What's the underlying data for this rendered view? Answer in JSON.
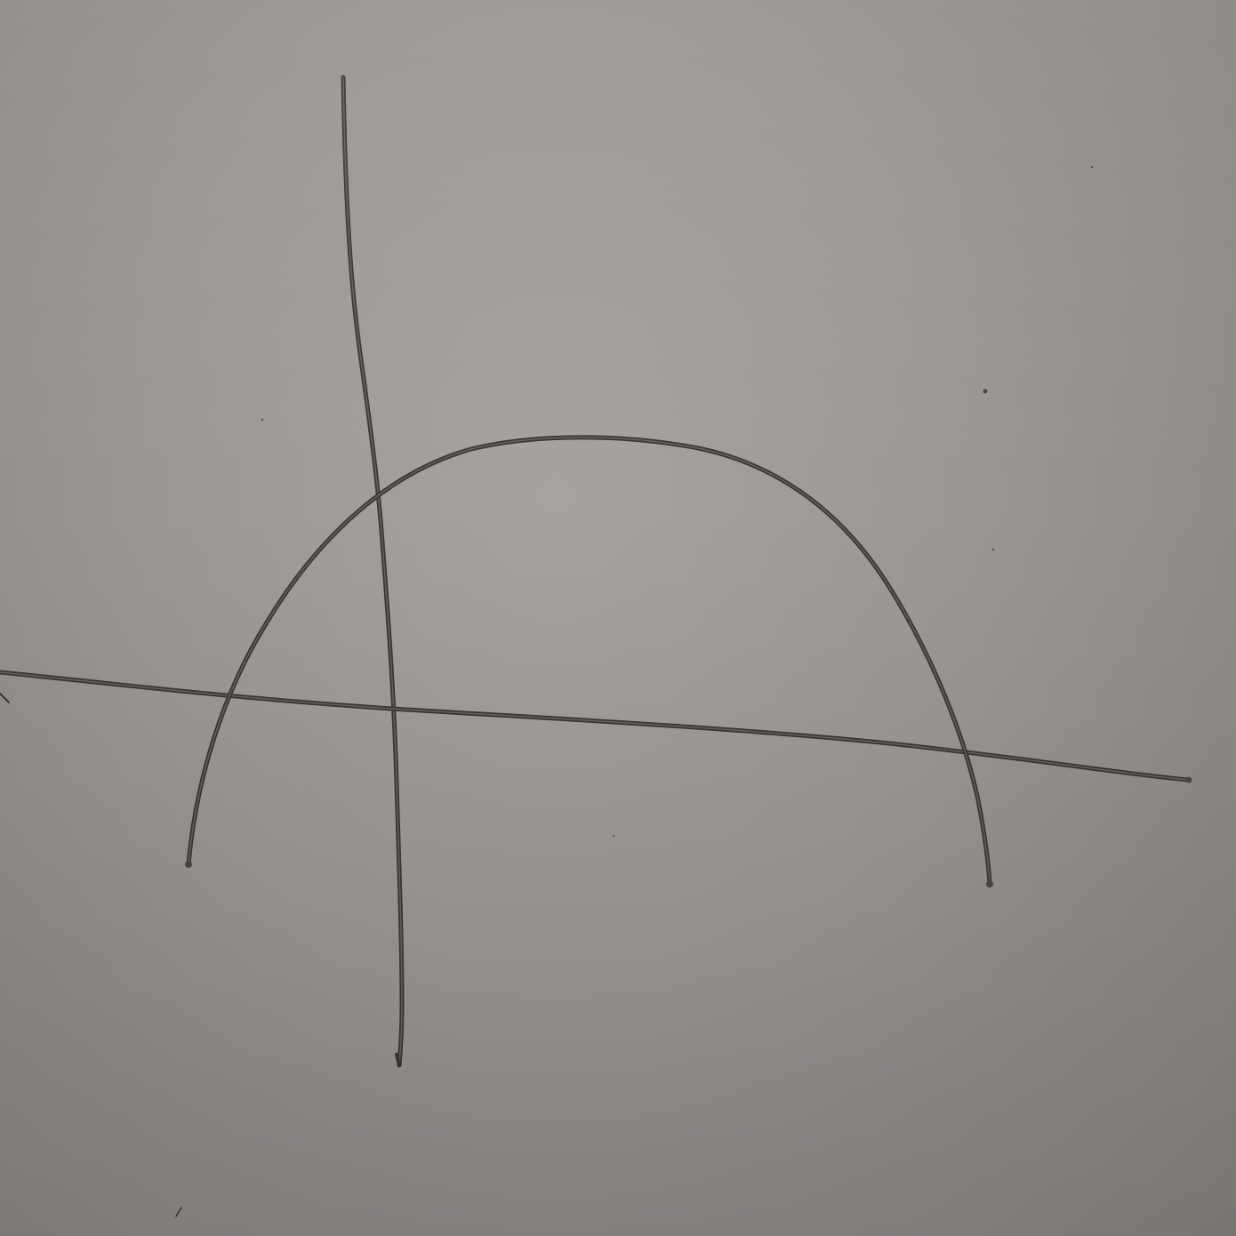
{
  "scene": {
    "description_kind": "hand-drawn sketch on whiteboard",
    "colors": {
      "board": "#9a9694",
      "ink": "#3a3634"
    },
    "elements": [
      "vertical-axis-stroke",
      "horizontal-axis-stroke",
      "parabola-arc-stroke"
    ]
  }
}
